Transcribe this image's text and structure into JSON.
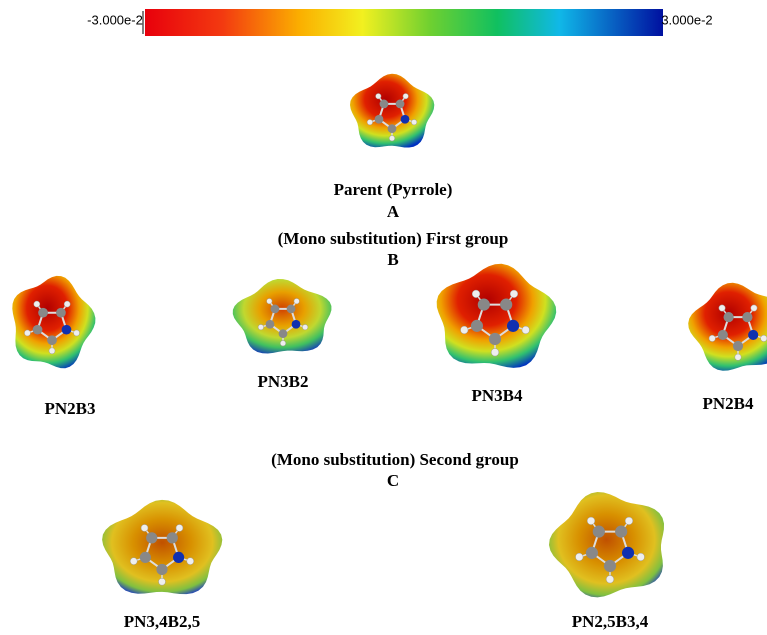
{
  "colorbar": {
    "min_label": "-3.000e-2",
    "max_label": "3.000e-2"
  },
  "section_a": {
    "caption": "Parent (Pyrrole)",
    "letter": "A"
  },
  "section_b": {
    "caption": "(Mono substitution) First group",
    "letter": "B",
    "molecules": [
      "PN2B3",
      "PN3B2",
      "PN3B4",
      "PN2B4"
    ]
  },
  "section_c": {
    "caption": "(Mono substitution) Second group",
    "letter": "C",
    "molecules": [
      "PN3,4B2,5",
      "PN2,5B3,4"
    ]
  }
}
